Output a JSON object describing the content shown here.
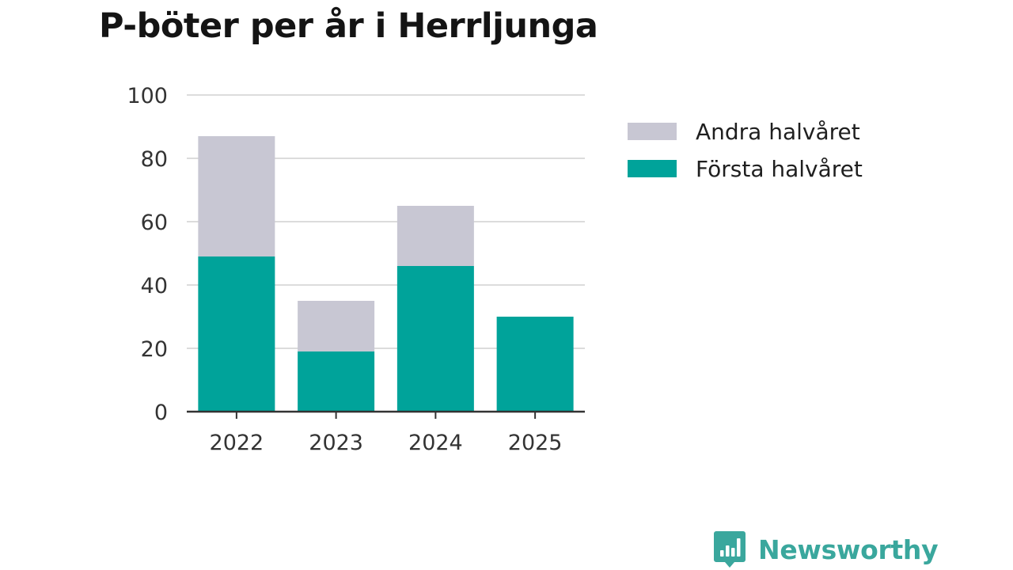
{
  "chart_data": {
    "type": "bar",
    "stacked": true,
    "title": "P-böter per år i Herrljunga",
    "categories": [
      "2022",
      "2023",
      "2024",
      "2025"
    ],
    "series": [
      {
        "name": "Första halvåret",
        "values": [
          49,
          19,
          46,
          30
        ],
        "color": "#00a39a"
      },
      {
        "name": "Andra halvåret",
        "values": [
          38,
          16,
          19,
          0
        ],
        "color": "#c8c7d3"
      }
    ],
    "ylim": [
      0,
      100
    ],
    "yticks": [
      0,
      20,
      40,
      60,
      80,
      100
    ],
    "xlabel": "",
    "ylabel": "",
    "grid": true,
    "legend_position": "right",
    "legend_order": [
      "Andra halvåret",
      "Första halvåret"
    ]
  },
  "branding": {
    "name": "Newsworthy",
    "color": "#3aa79d",
    "icon": "bar-chart-speech-bubble-icon"
  }
}
